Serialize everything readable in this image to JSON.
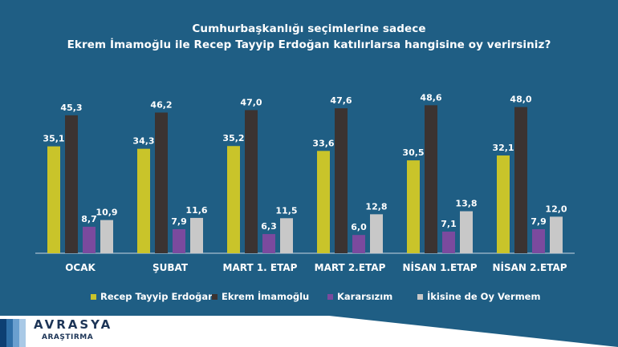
{
  "title": {
    "line1": "Cumhurbaşkanlığı seçimlerine sadece",
    "line2": "Ekrem İmamoğlu ile Recep Tayyip Erdoğan katılırlarsa hangisine oy verirsiniz?"
  },
  "brand": {
    "name": "AVRASYA",
    "sub": "ARAŞTIRMA"
  },
  "chart_data": {
    "type": "bar",
    "title": "Cumhurbaşkanlığı seçimlerine sadece Ekrem İmamoğlu ile Recep Tayyip Erdoğan katılırlarsa hangisine oy verirsiniz?",
    "xlabel": "",
    "ylabel": "",
    "ylim": [
      0,
      60
    ],
    "grid": false,
    "legend": "bottom",
    "categories": [
      "OCAK",
      "ŞUBAT",
      "MART 1. ETAP",
      "MART 2.ETAP",
      "NİSAN 1.ETAP",
      "NİSAN 2.ETAP"
    ],
    "series": [
      {
        "name": "Recep Tayyip Erdoğan",
        "color": "#c9c42a",
        "values": [
          35.1,
          34.3,
          35.2,
          33.6,
          30.5,
          32.1
        ],
        "labels": [
          "35,1",
          "34,3",
          "35,2",
          "33,6",
          "30,5",
          "32,1"
        ]
      },
      {
        "name": "Ekrem İmamoğlu",
        "color": "#3b3331",
        "values": [
          45.3,
          46.2,
          47.0,
          47.6,
          48.6,
          48.0
        ],
        "labels": [
          "45,3",
          "46,2",
          "47,0",
          "47,6",
          "48,6",
          "48,0"
        ]
      },
      {
        "name": "Kararsızım",
        "color": "#7b4a9e",
        "values": [
          8.7,
          7.9,
          6.3,
          6.0,
          7.1,
          7.9
        ],
        "labels": [
          "8,7",
          "7,9",
          "6,3",
          "6,0",
          "7,1",
          "7,9"
        ]
      },
      {
        "name": "İkisine de Oy Vermem",
        "color": "#c8c8c8",
        "values": [
          10.9,
          11.6,
          11.5,
          12.8,
          13.8,
          12.0
        ],
        "labels": [
          "10,9",
          "11,6",
          "11,5",
          "12,8",
          "13,8",
          "12,0"
        ]
      }
    ]
  }
}
